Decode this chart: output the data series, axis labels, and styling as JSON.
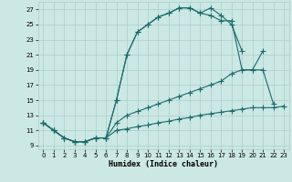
{
  "xlabel": "Humidex (Indice chaleur)",
  "background_color": "#cce8e4",
  "grid_color": "#aacccc",
  "line_color": "#1a6b6b",
  "xlim": [
    -0.5,
    23.5
  ],
  "ylim": [
    8.5,
    28.0
  ],
  "xticks": [
    0,
    1,
    2,
    3,
    4,
    5,
    6,
    7,
    8,
    9,
    10,
    11,
    12,
    13,
    14,
    15,
    16,
    17,
    18,
    19,
    20,
    21,
    22,
    23
  ],
  "yticks": [
    9,
    11,
    13,
    15,
    17,
    19,
    21,
    23,
    25,
    27
  ],
  "series": [
    {
      "x": [
        0,
        1,
        2,
        3,
        4,
        5,
        6,
        7,
        8,
        9,
        10,
        11,
        12,
        13,
        14,
        15,
        16,
        17,
        18,
        19
      ],
      "y": [
        12,
        11,
        10,
        9.5,
        9.5,
        10,
        10,
        15,
        21,
        24,
        25,
        26,
        26.5,
        27.2,
        27.2,
        26.5,
        27.2,
        26.2,
        25,
        21.5
      ]
    },
    {
      "x": [
        0,
        1,
        2,
        3,
        4,
        5,
        6,
        7,
        8,
        9,
        10,
        11,
        12,
        13,
        14,
        15,
        16,
        17,
        18,
        19,
        20,
        21
      ],
      "y": [
        12,
        11,
        10,
        9.5,
        9.5,
        10,
        10,
        15,
        21,
        24,
        25,
        26,
        26.5,
        27.2,
        27.2,
        26.5,
        26.2,
        25.5,
        25.5,
        19,
        19,
        21.5
      ]
    },
    {
      "x": [
        0,
        1,
        2,
        3,
        4,
        5,
        6,
        7,
        8,
        9,
        10,
        11,
        12,
        13,
        14,
        15,
        16,
        17,
        18,
        19,
        20,
        21,
        22
      ],
      "y": [
        12,
        11,
        10,
        9.5,
        9.5,
        10,
        10,
        12,
        13,
        13.5,
        14,
        14.5,
        15,
        15.5,
        16,
        16.5,
        17,
        17.5,
        18.5,
        19,
        19,
        19,
        14.5
      ]
    },
    {
      "x": [
        0,
        1,
        2,
        3,
        4,
        5,
        6,
        7,
        8,
        9,
        10,
        11,
        12,
        13,
        14,
        15,
        16,
        17,
        18,
        19,
        20,
        21,
        22,
        23
      ],
      "y": [
        12,
        11,
        10,
        9.5,
        9.5,
        10,
        10,
        11,
        11.2,
        11.5,
        11.7,
        12,
        12.2,
        12.5,
        12.7,
        13,
        13.2,
        13.4,
        13.6,
        13.8,
        14,
        14,
        14,
        14.2
      ]
    }
  ],
  "series_styles": [
    {
      "linestyle": "-",
      "marker": "+",
      "markersize": 4
    },
    {
      "linestyle": "-",
      "marker": "+",
      "markersize": 4
    },
    {
      "linestyle": "-",
      "marker": "+",
      "markersize": 4
    },
    {
      "linestyle": "-",
      "marker": "+",
      "markersize": 4
    }
  ]
}
